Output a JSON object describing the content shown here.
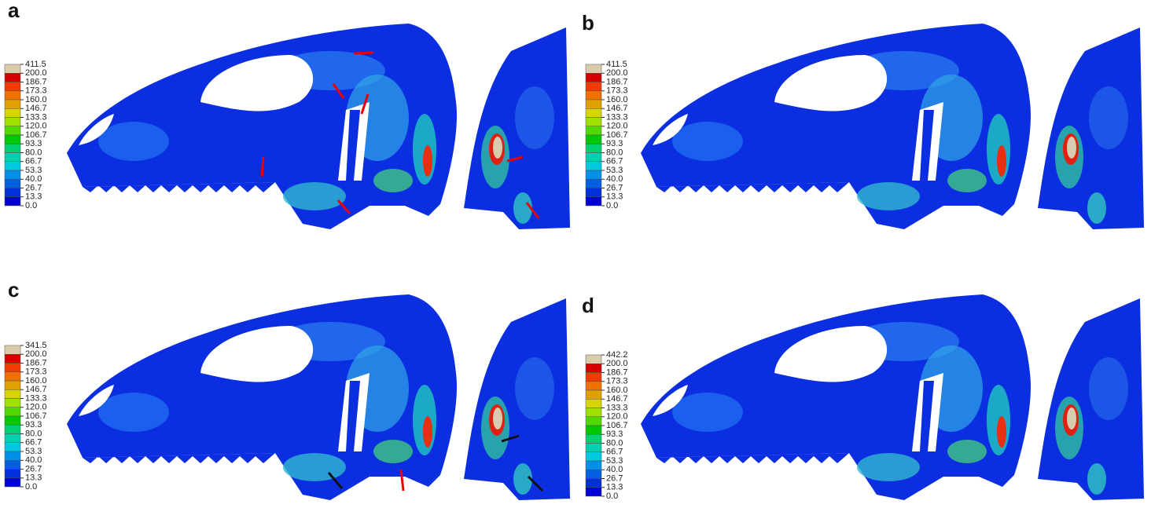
{
  "panels": [
    {
      "label": "a",
      "scale": [
        "411.5",
        "200.0",
        "186.7",
        "173.3",
        "160.0",
        "146.7",
        "133.3",
        "120.0",
        "106.7",
        "93.3",
        "80.0",
        "66.7",
        "53.3",
        "40.0",
        "26.7",
        "13.3",
        "0.0"
      ]
    },
    {
      "label": "b",
      "scale": [
        "411.5",
        "200.0",
        "186.7",
        "173.3",
        "160.0",
        "146.7",
        "133.3",
        "120.0",
        "106.7",
        "93.3",
        "80.0",
        "66.7",
        "53.3",
        "40.0",
        "26.7",
        "13.3",
        "0.0"
      ]
    },
    {
      "label": "c",
      "scale": [
        "341.5",
        "200.0",
        "186.7",
        "173.3",
        "160.0",
        "146.7",
        "133.3",
        "120.0",
        "106.7",
        "93.3",
        "80.0",
        "66.7",
        "53.3",
        "40.0",
        "26.7",
        "13.3",
        "0.0"
      ]
    },
    {
      "label": "d",
      "scale": [
        "442.2",
        "200.0",
        "186.7",
        "173.3",
        "160.0",
        "146.7",
        "133.3",
        "120.0",
        "106.7",
        "93.3",
        "80.0",
        "66.7",
        "53.3",
        "40.0",
        "26.7",
        "13.3",
        "0.0"
      ]
    }
  ]
}
